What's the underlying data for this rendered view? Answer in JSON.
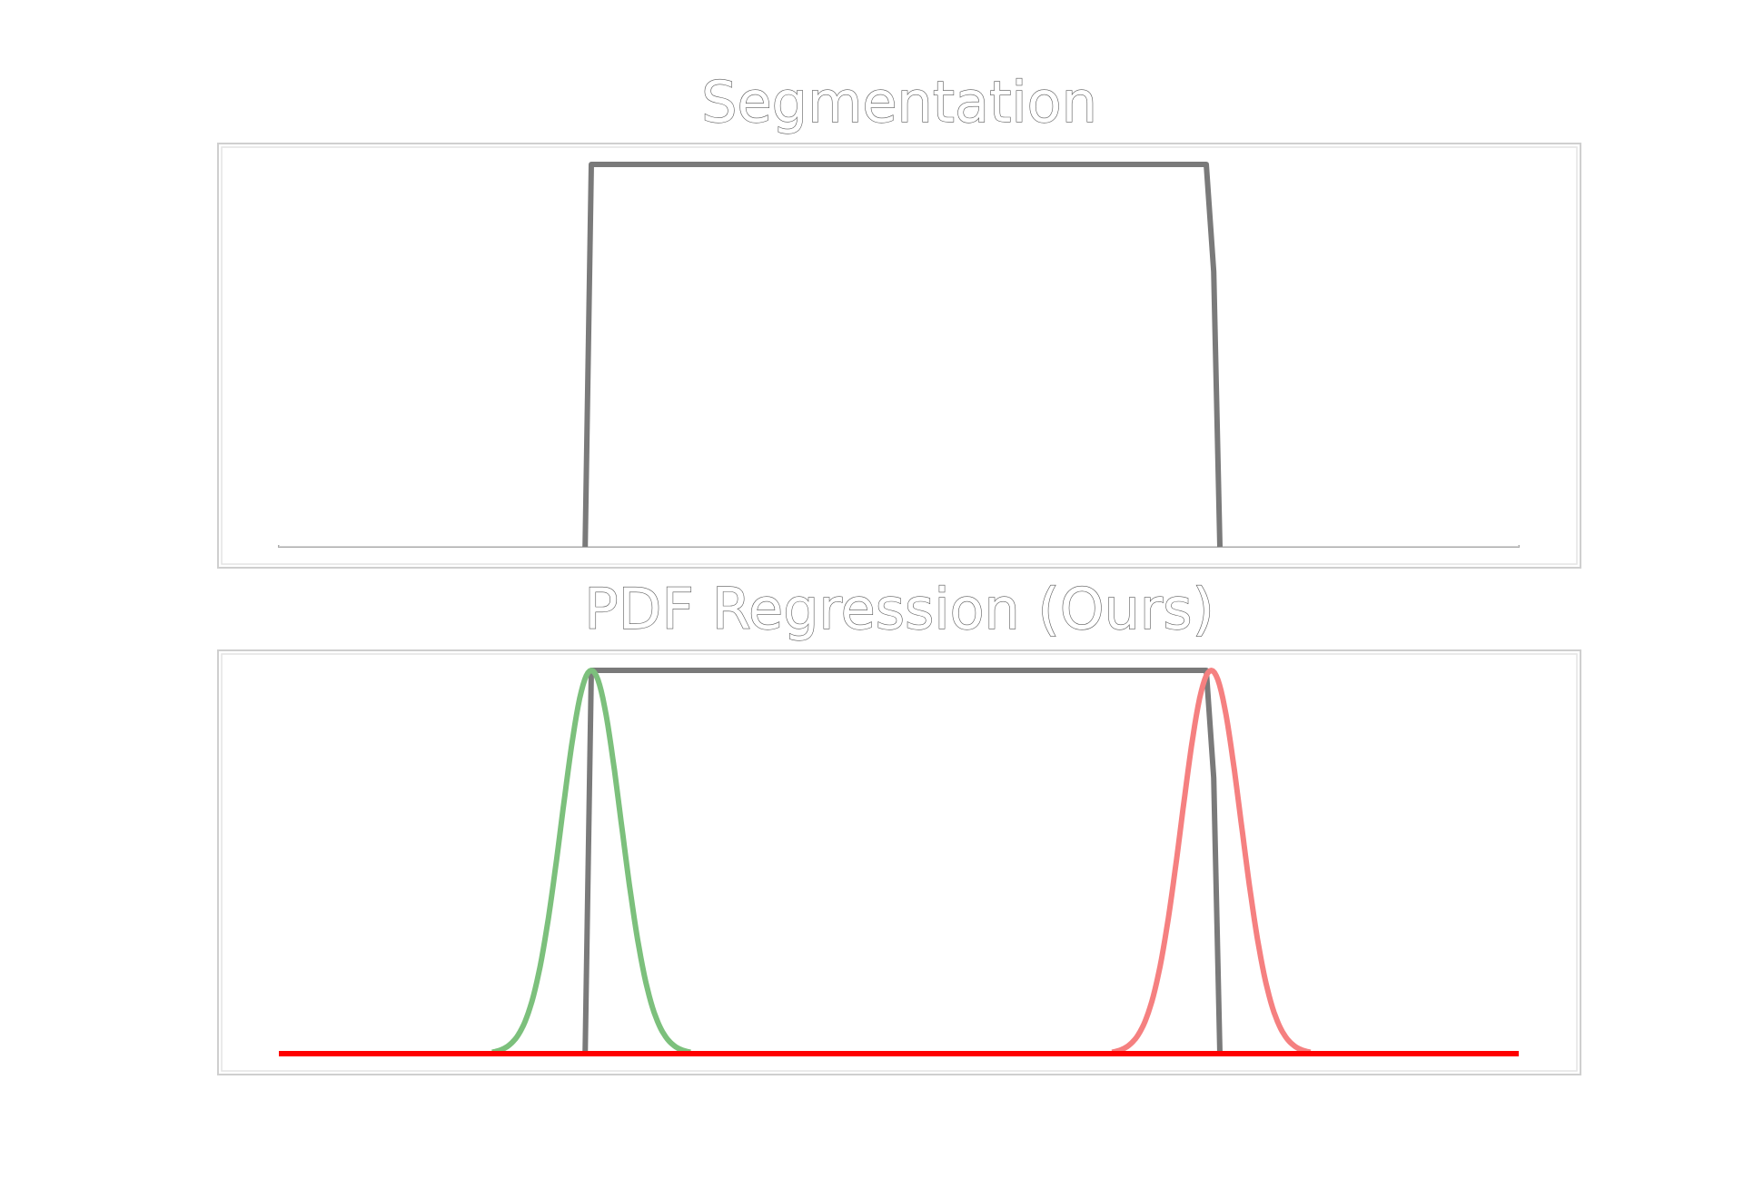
{
  "chart_data": [
    {
      "type": "line",
      "title": "Segmentation",
      "xlabel": "",
      "ylabel": "",
      "xlim": [
        0,
        100
      ],
      "ylim": [
        0,
        1
      ],
      "grid": false,
      "series": [
        {
          "x": [
            0,
            24.7,
            25.2,
            74.8,
            75.4,
            75.9,
            100
          ],
          "y": [
            0,
            0,
            1,
            1,
            0.72,
            0,
            0
          ],
          "color": "#7a7a7a"
        }
      ]
    },
    {
      "type": "line",
      "title": "PDF Regression (Ours)",
      "xlabel": "",
      "ylabel": "",
      "xlim": [
        0,
        100
      ],
      "ylim": [
        0,
        1
      ],
      "grid": false,
      "series": [
        {
          "x": [
            0,
            24.7,
            25.2,
            74.8,
            75.4,
            75.9,
            100
          ],
          "y": [
            0,
            0,
            1,
            1,
            0.72,
            0,
            0
          ],
          "color": "#7a7a7a"
        },
        {
          "distribution": "gaussian",
          "mean": 25.2,
          "std": 2.4,
          "peak": 1,
          "support": [
            17.2,
            33.2
          ],
          "color": "#7cc07c"
        },
        {
          "distribution": "gaussian",
          "mean": 75.2,
          "std": 2.4,
          "peak": 1,
          "support": [
            67.2,
            83.2
          ],
          "color": "#f58080"
        },
        {
          "x": [
            0,
            100
          ],
          "y": [
            0,
            0
          ],
          "color": "#ff0000"
        }
      ]
    }
  ]
}
